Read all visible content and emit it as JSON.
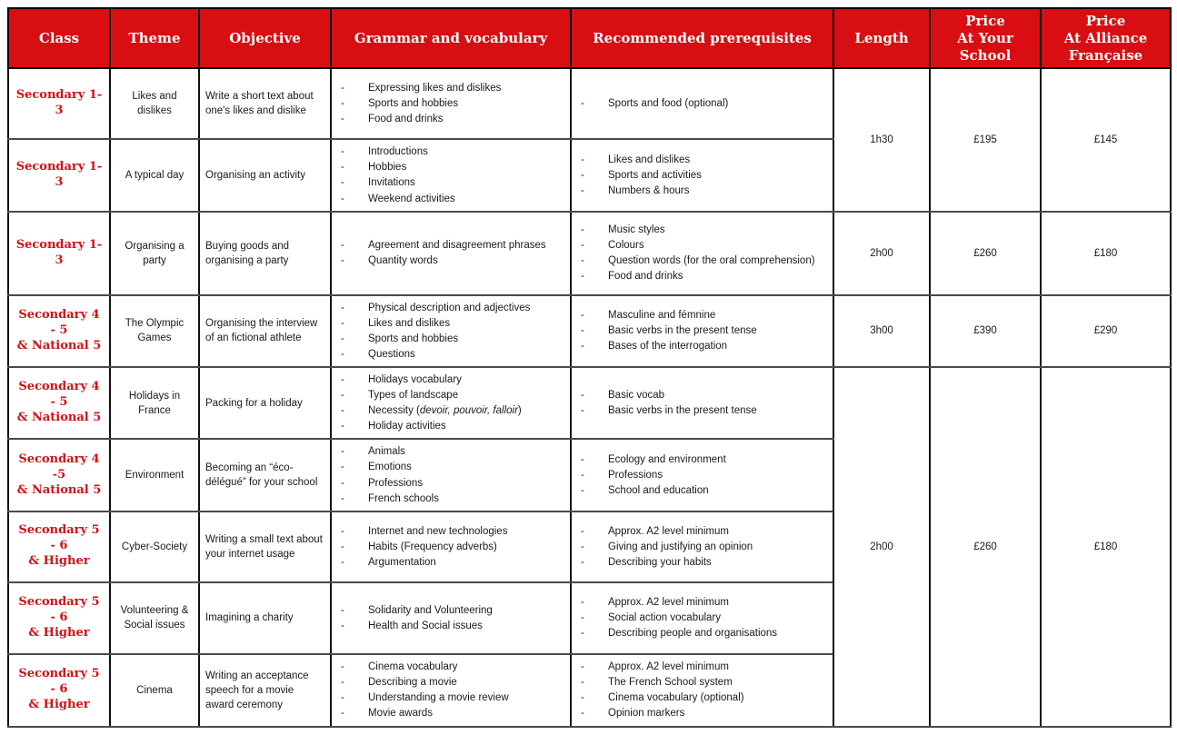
{
  "colors": {
    "header_bg": "#d80e12",
    "header_text": "#ffffff",
    "class_text": "#d11116",
    "grid_border": "#111111",
    "row_divider": "#4a4a4a",
    "body_text": "#1a1a1a"
  },
  "table": {
    "columns": [
      "Class",
      "Theme",
      "Objective",
      "Grammar and vocabulary",
      "Recommended prerequisites",
      "Length",
      "Price\nAt Your School",
      "Price\nAt Alliance\nFrançaise"
    ],
    "rows": [
      {
        "class": "Secondary 1- 3",
        "theme": "Likes and dislikes",
        "objective": "Write a short text about one's likes and dislike",
        "grammar": [
          "Expressing likes and dislikes",
          "Sports and hobbies",
          "Food and drinks"
        ],
        "prerequisites": [
          "Sports and food (optional)"
        ],
        "pricing": {
          "length": "1h30",
          "school": "£195",
          "alliance": "£145",
          "rowspan": 2
        }
      },
      {
        "class": "Secondary 1- 3",
        "theme": "A typical day",
        "objective": "Organising an activity",
        "grammar": [
          "Introductions",
          "Hobbies",
          "Invitations",
          "Weekend activities"
        ],
        "prerequisites": [
          "Likes and dislikes",
          "Sports and activities",
          "Numbers & hours"
        ],
        "pricing": null
      },
      {
        "class": "Secondary 1- 3",
        "theme": "Organising a party",
        "objective": "Buying goods and organising a party",
        "grammar": [
          "Agreement and disagreement phrases",
          "Quantity words"
        ],
        "prerequisites": [
          "Music styles",
          "Colours",
          "Question words (for the oral comprehension)",
          "Food and drinks"
        ],
        "pricing": {
          "length": "2h00",
          "school": "£260",
          "alliance": "£180",
          "rowspan": 1
        }
      },
      {
        "class": "Secondary 4 - 5\n& National 5",
        "theme": "The Olympic Games",
        "objective": "Organising the interview of an fictional athlete",
        "grammar": [
          "Physical description and adjectives",
          "Likes and dislikes",
          "Sports and hobbies",
          "Questions"
        ],
        "prerequisites": [
          "Masculine and fémnine",
          "Basic verbs in the present tense",
          "Bases of the interrogation"
        ],
        "pricing": {
          "length": "3h00",
          "school": "£390",
          "alliance": "£290",
          "rowspan": 1
        }
      },
      {
        "class": "Secondary 4 - 5\n& National 5",
        "theme": "Holidays in France",
        "objective": "Packing for a holiday",
        "grammar": [
          "Holidays vocabulary",
          "Types of landscape",
          "Necessity (*devoir, pouvoir, falloir*)",
          "Holiday activities"
        ],
        "prerequisites": [
          "Basic vocab",
          "Basic verbs in the present tense"
        ],
        "pricing": {
          "length": "2h00",
          "school": "£260",
          "alliance": "£180",
          "rowspan": 5
        }
      },
      {
        "class": "Secondary 4 -5\n& National 5",
        "theme": "Environment",
        "objective": "Becoming an “éco-délégué” for your school",
        "grammar": [
          "Animals",
          "Emotions",
          "Professions",
          "French schools"
        ],
        "prerequisites": [
          "Ecology and environment",
          "Professions",
          "School and education"
        ],
        "pricing": null
      },
      {
        "class": "Secondary 5 - 6\n& Higher",
        "theme": "Cyber-Society",
        "objective": "Writing a small text about your internet usage",
        "grammar": [
          "Internet and new technologies",
          "Habits (Frequency adverbs)",
          "Argumentation"
        ],
        "prerequisites": [
          "Approx. A2 level minimum",
          "Giving and justifying an opinion",
          "Describing your habits"
        ],
        "pricing": null
      },
      {
        "class": "Secondary 5 - 6\n& Higher",
        "theme": "Volunteering & Social issues",
        "objective": "Imagining a charity",
        "grammar": [
          "Solidarity and Volunteering",
          "Health and Social issues"
        ],
        "prerequisites": [
          "Approx. A2 level minimum",
          "Social action vocabulary",
          "Describing people and organisations"
        ],
        "pricing": null
      },
      {
        "class": "Secondary 5 - 6\n& Higher",
        "theme": "Cinema",
        "objective": "Writing an acceptance speech for a movie award ceremony",
        "grammar": [
          "Cinema vocabulary",
          "Describing a movie",
          "Understanding a movie review",
          "Movie awards"
        ],
        "prerequisites": [
          "Approx. A2 level minimum",
          "The French School system",
          "Cinema vocabulary (optional)",
          "Opinion markers"
        ],
        "pricing": null
      }
    ]
  }
}
